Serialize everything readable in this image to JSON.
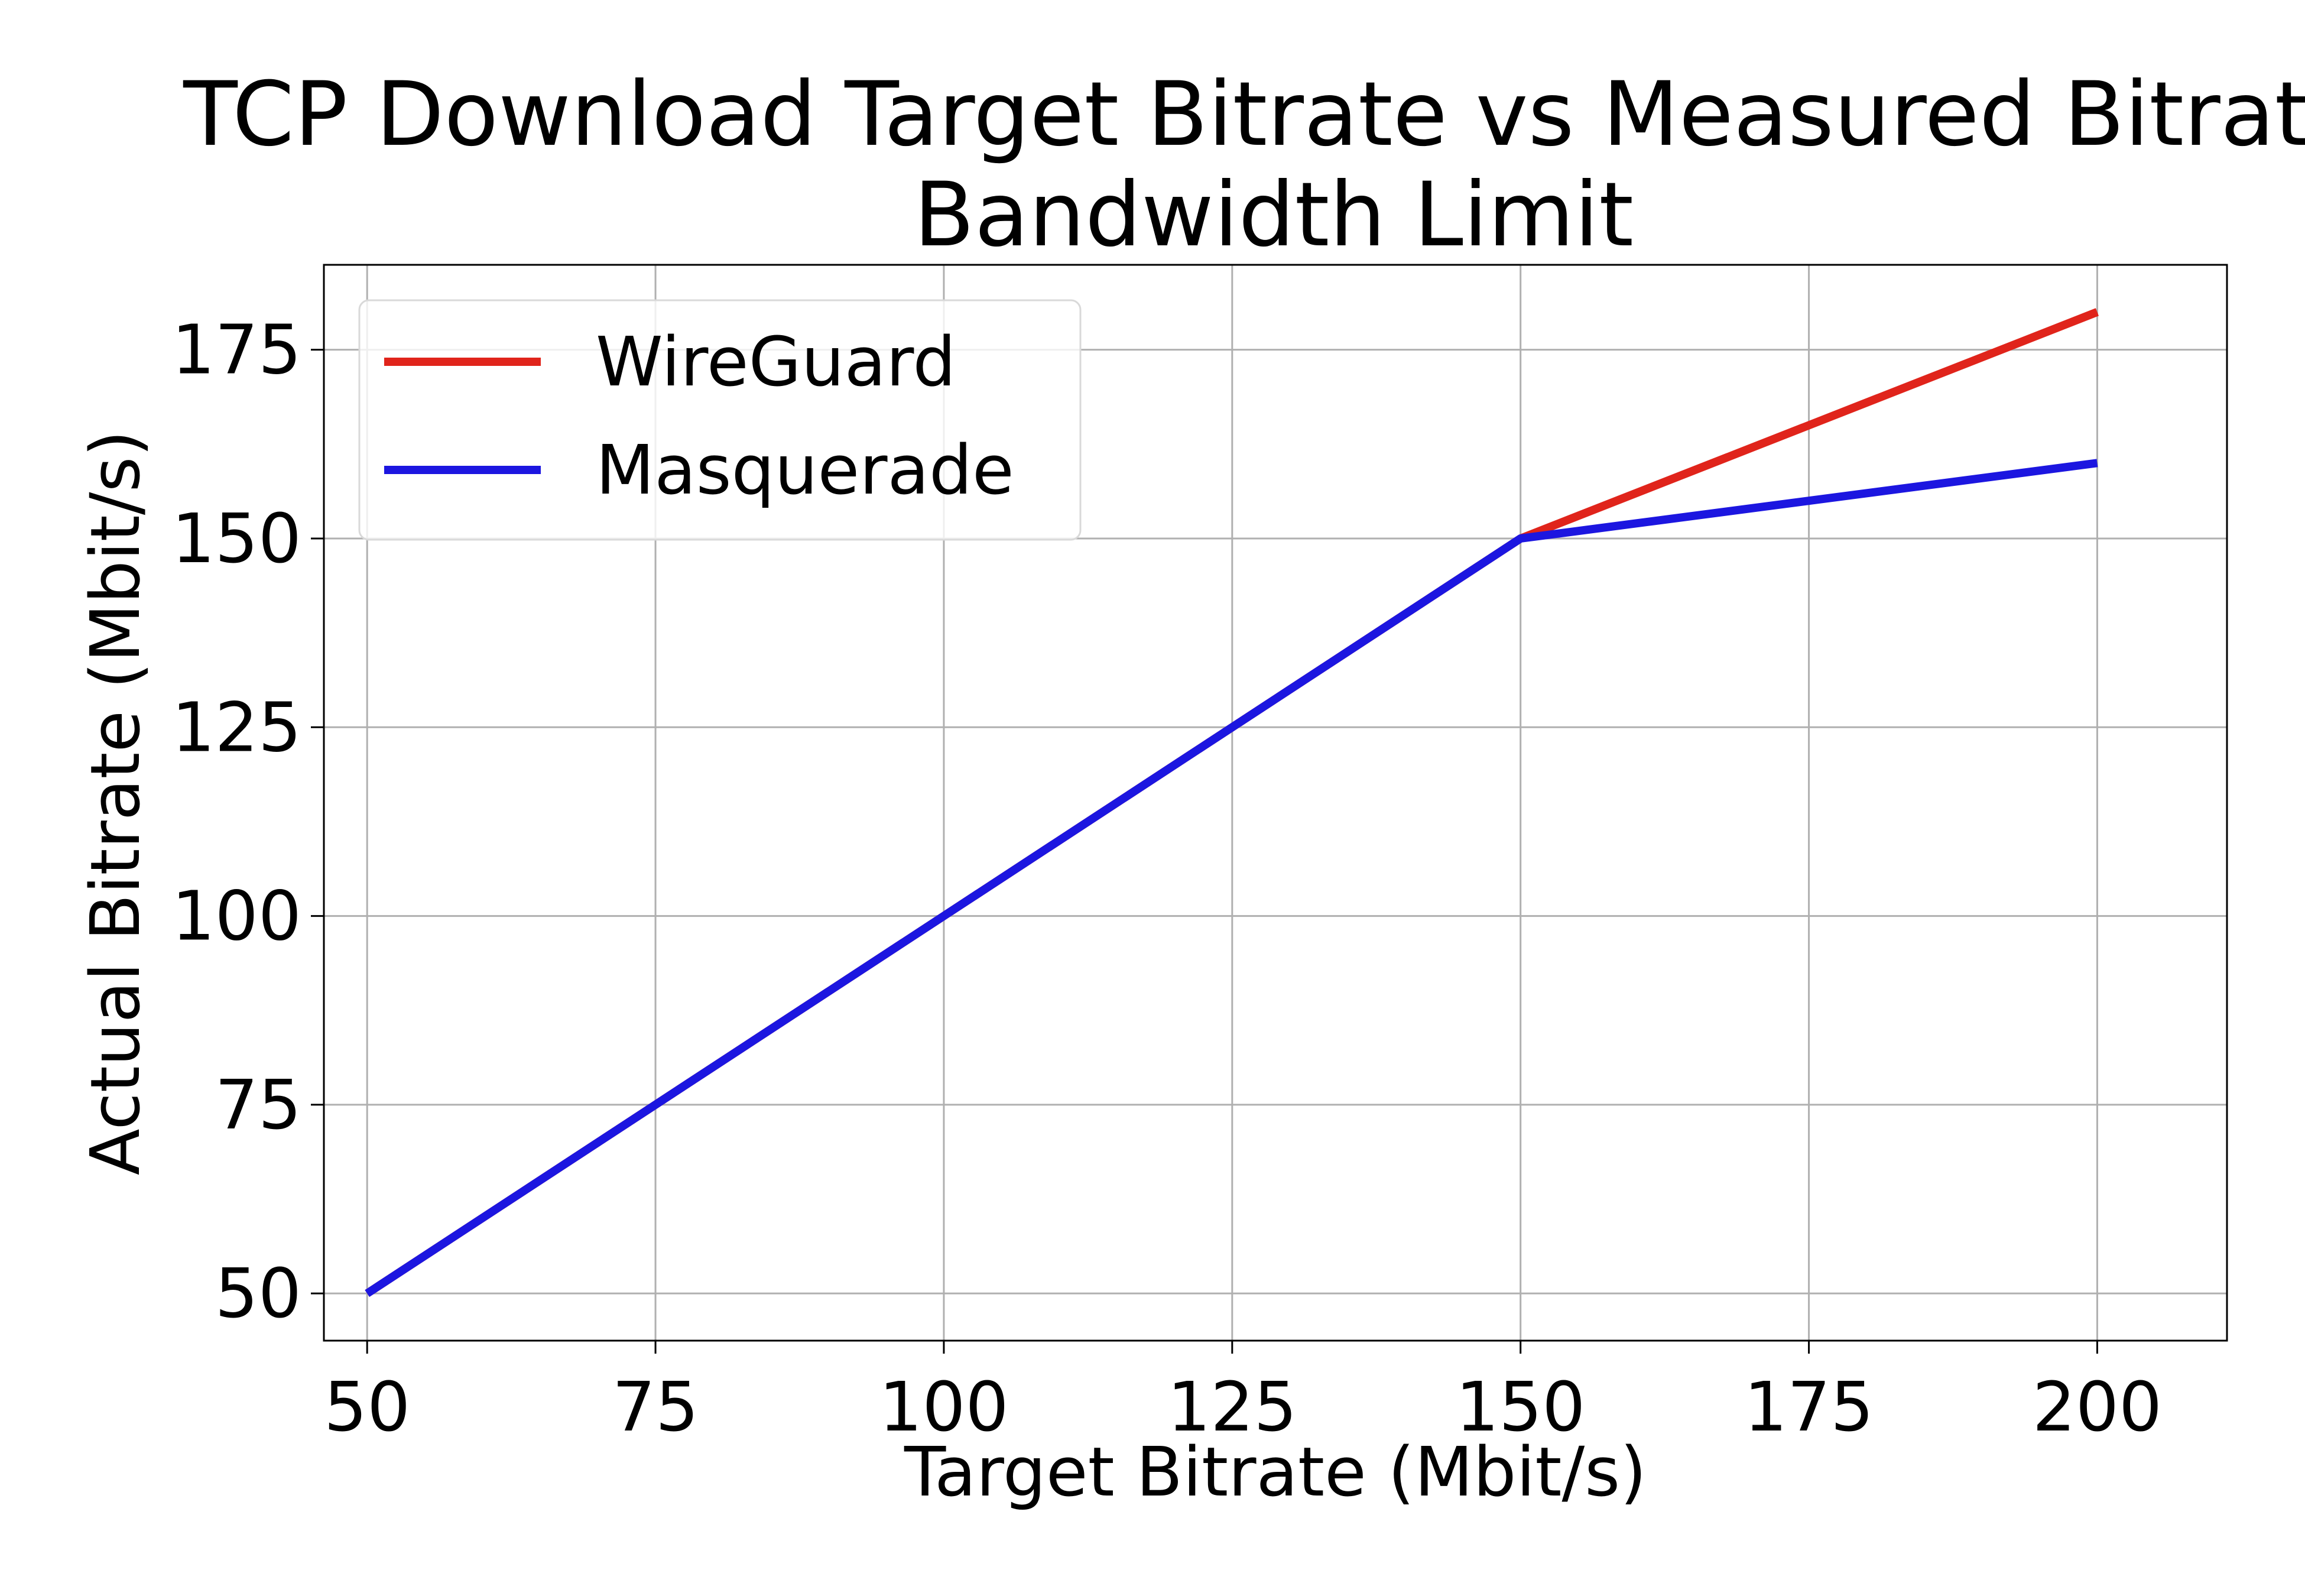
{
  "chart_data": {
    "type": "line",
    "title_lines": [
      "TCP Download Target Bitrate vs Measured Bitrate",
      "Bandwidth Limit"
    ],
    "xlabel": "Target Bitrate (Mbit/s)",
    "ylabel": "Actual Bitrate (Mbit/s)",
    "x": [
      50,
      100,
      150,
      200
    ],
    "xlim": [
      46.25,
      211.25
    ],
    "ylim": [
      43.75,
      186.25
    ],
    "xticks": [
      50,
      75,
      100,
      125,
      150,
      175,
      200
    ],
    "yticks": [
      50,
      75,
      100,
      125,
      150,
      175
    ],
    "grid": true,
    "legend_position": "top-left",
    "series": [
      {
        "name": "WireGuard",
        "color": "#e0241b",
        "values": [
          50,
          100,
          150,
          180
        ]
      },
      {
        "name": "Masquerade",
        "color": "#1c16e0",
        "values": [
          50,
          100,
          150,
          160
        ]
      }
    ]
  }
}
